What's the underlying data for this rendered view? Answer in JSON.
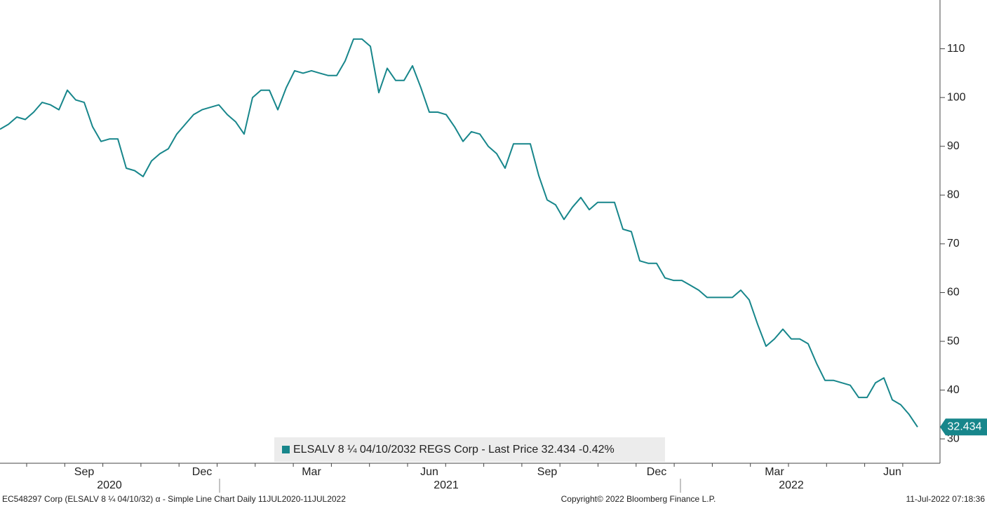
{
  "chart_data": {
    "type": "line",
    "categories": [
      null,
      null,
      null,
      null,
      null,
      null,
      null,
      null,
      null,
      null,
      "Sep",
      null,
      null,
      null,
      null,
      null,
      null,
      null,
      null,
      null,
      null,
      null,
      null,
      null,
      "Dec",
      null,
      null,
      null,
      null,
      null,
      null,
      null,
      null,
      null,
      null,
      null,
      null,
      "Mar",
      null,
      null,
      null,
      null,
      null,
      null,
      null,
      null,
      null,
      null,
      null,
      null,
      null,
      "Jun",
      null,
      null,
      null,
      null,
      null,
      null,
      null,
      null,
      null,
      null,
      null,
      null,
      null,
      "Sep",
      null,
      null,
      null,
      null,
      null,
      null,
      null,
      null,
      null,
      null,
      null,
      null,
      "Dec",
      null,
      null,
      null,
      null,
      null,
      null,
      null,
      null,
      null,
      null,
      null,
      null,
      null,
      "Mar",
      null,
      null,
      null,
      null,
      null,
      null,
      null,
      null,
      null,
      null,
      null,
      null,
      null,
      "Jun",
      null,
      null,
      null
    ],
    "years": [
      null,
      null,
      null,
      null,
      null,
      null,
      null,
      null,
      null,
      null,
      null,
      null,
      null,
      "2020",
      null,
      null,
      null,
      null,
      null,
      null,
      null,
      null,
      null,
      null,
      null,
      null,
      null,
      null,
      null,
      null,
      null,
      null,
      null,
      null,
      null,
      null,
      null,
      null,
      null,
      null,
      null,
      null,
      null,
      null,
      null,
      null,
      null,
      null,
      null,
      null,
      null,
      null,
      null,
      "2021",
      null,
      null,
      null,
      null,
      null,
      null,
      null,
      null,
      null,
      null,
      null,
      null,
      null,
      null,
      null,
      null,
      null,
      null,
      null,
      null,
      null,
      null,
      null,
      null,
      null,
      null,
      null,
      null,
      null,
      null,
      null,
      null,
      null,
      null,
      null,
      null,
      null,
      null,
      null,
      null,
      "2022",
      null,
      null,
      null,
      null,
      null,
      null,
      null,
      null,
      null,
      null,
      null,
      null,
      null
    ],
    "series": [
      {
        "name": "ELSALV 8 ¼ 04/10/2032 REGS Corp - Last Price 32.434 -0.42%",
        "color": "#17868b",
        "values": [
          93.5,
          94.5,
          96,
          95.5,
          97,
          99,
          98.5,
          97.5,
          101.5,
          99.5,
          99,
          94,
          91,
          91.5,
          91.5,
          85.5,
          85,
          83.8,
          87,
          88.5,
          89.5,
          92.5,
          94.5,
          96.5,
          97.5,
          98,
          98.5,
          96.5,
          95,
          92.5,
          100,
          101.5,
          101.5,
          97.5,
          102,
          105.5,
          105,
          105.5,
          105,
          104.5,
          104.5,
          107.5,
          112,
          112,
          110.5,
          101,
          106,
          103.5,
          103.5,
          106.5,
          102,
          97,
          97,
          96.5,
          94,
          91,
          93,
          92.5,
          90,
          88.5,
          85.5,
          90.5,
          90.5,
          90.5,
          84,
          79,
          78,
          75,
          77.5,
          79.5,
          77,
          78.5,
          78.5,
          78.5,
          73,
          72.5,
          66.5,
          66,
          66,
          63,
          62.5,
          62.5,
          61.5,
          60.5,
          59,
          59,
          59,
          59,
          60.5,
          58.5,
          53.5,
          49,
          50.5,
          52.5,
          50.5,
          50.5,
          49.5,
          45.5,
          42,
          42,
          41.5,
          41,
          38.5,
          38.5,
          41.5,
          42.5,
          38,
          37,
          35,
          32.434
        ],
        "last_value_label": "32.434"
      }
    ],
    "ylim": [
      25,
      120
    ],
    "yticks": [
      30,
      40,
      50,
      60,
      70,
      80,
      90,
      100,
      110
    ],
    "grid": false,
    "legend": "bottom",
    "footer_left": "EC548297 Corp (ELSALV 8 ¼ 04/10/32) α - Simple Line Chart  Daily 11JUL2020-11JUL2022",
    "footer_center": "Copyright© 2022 Bloomberg Finance L.P.",
    "footer_right": "11-Jul-2022 07:18:36"
  }
}
